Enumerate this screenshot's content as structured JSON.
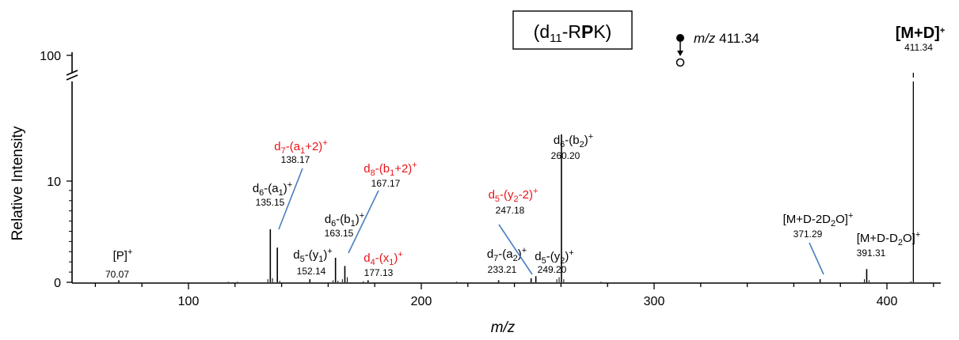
{
  "chart_data": {
    "type": "mass-spectrum",
    "title": "(d11-RPK)",
    "xlabel": "m/z",
    "ylabel": "Relative Intensity",
    "xlim": [
      50,
      420
    ],
    "x_ticks": [
      100,
      200,
      300,
      400
    ],
    "y_ticks": [
      "0",
      "10",
      "100"
    ],
    "y_axis_break": true,
    "precursor_note": "m/z 411.34",
    "colors": {
      "normal_label": "#000000",
      "red_label": "#e8141b",
      "leader": "#4a7fc1",
      "peak": "#000000"
    },
    "labeled_peaks": [
      {
        "mz": 70.07,
        "value": "70.07",
        "ion": "[P]+",
        "intensity": 0.2,
        "color": "black"
      },
      {
        "mz": 135.15,
        "value": "135.15",
        "ion": "d6-(a1)+",
        "intensity": 5.2,
        "color": "black"
      },
      {
        "mz": 138.17,
        "value": "138.17",
        "ion": "d7-(a1+2)+",
        "intensity": 3.4,
        "color": "red"
      },
      {
        "mz": 152.14,
        "value": "152.14",
        "ion": "d5-(y1)+",
        "intensity": 0.3,
        "color": "black"
      },
      {
        "mz": 163.15,
        "value": "163.15",
        "ion": "d6-(b1)+",
        "intensity": 2.4,
        "color": "black"
      },
      {
        "mz": 167.17,
        "value": "167.17",
        "ion": "d8-(b1+2)+",
        "intensity": 1.6,
        "color": "red"
      },
      {
        "mz": 177.13,
        "value": "177.13",
        "ion": "d4-(x1)+",
        "intensity": 0.2,
        "color": "red"
      },
      {
        "mz": 233.21,
        "value": "233.21",
        "ion": "d7-(a2)+",
        "intensity": 0.2,
        "color": "black"
      },
      {
        "mz": 247.18,
        "value": "247.18",
        "ion": "d5-(y2-2)+",
        "intensity": 0.4,
        "color": "red"
      },
      {
        "mz": 249.2,
        "value": "249.20",
        "ion": "d5-(y2)+",
        "intensity": 0.6,
        "color": "black"
      },
      {
        "mz": 260.2,
        "value": "260.20",
        "ion": "d6-(b2)+",
        "intensity": 14.5,
        "color": "black"
      },
      {
        "mz": 371.29,
        "value": "371.29",
        "ion": "[M+D-2D2O]+",
        "intensity": 0.3,
        "color": "black"
      },
      {
        "mz": 391.31,
        "value": "391.31",
        "ion": "[M+D-D2O]+",
        "intensity": 1.3,
        "color": "black"
      },
      {
        "mz": 411.34,
        "value": "411.34",
        "ion": "[M+D]+",
        "intensity": 100,
        "color": "black"
      }
    ],
    "minor_peaks": [
      {
        "mz": 117.1,
        "intensity": 0.06
      },
      {
        "mz": 121.1,
        "intensity": 0.06
      },
      {
        "mz": 134.1,
        "intensity": 0.3
      },
      {
        "mz": 136.1,
        "intensity": 0.4
      },
      {
        "mz": 139.2,
        "intensity": 0.15
      },
      {
        "mz": 162.1,
        "intensity": 0.2
      },
      {
        "mz": 164.2,
        "intensity": 0.15
      },
      {
        "mz": 166.1,
        "intensity": 0.3
      },
      {
        "mz": 168.2,
        "intensity": 0.5
      },
      {
        "mz": 175.1,
        "intensity": 0.1
      },
      {
        "mz": 215.2,
        "intensity": 0.06
      },
      {
        "mz": 258.2,
        "intensity": 0.3
      },
      {
        "mz": 259.2,
        "intensity": 0.5
      },
      {
        "mz": 261.2,
        "intensity": 0.3
      },
      {
        "mz": 277.2,
        "intensity": 0.06
      },
      {
        "mz": 390.3,
        "intensity": 0.3
      },
      {
        "mz": 392.3,
        "intensity": 0.2
      },
      {
        "mz": 410.3,
        "intensity": 0.1
      }
    ]
  }
}
